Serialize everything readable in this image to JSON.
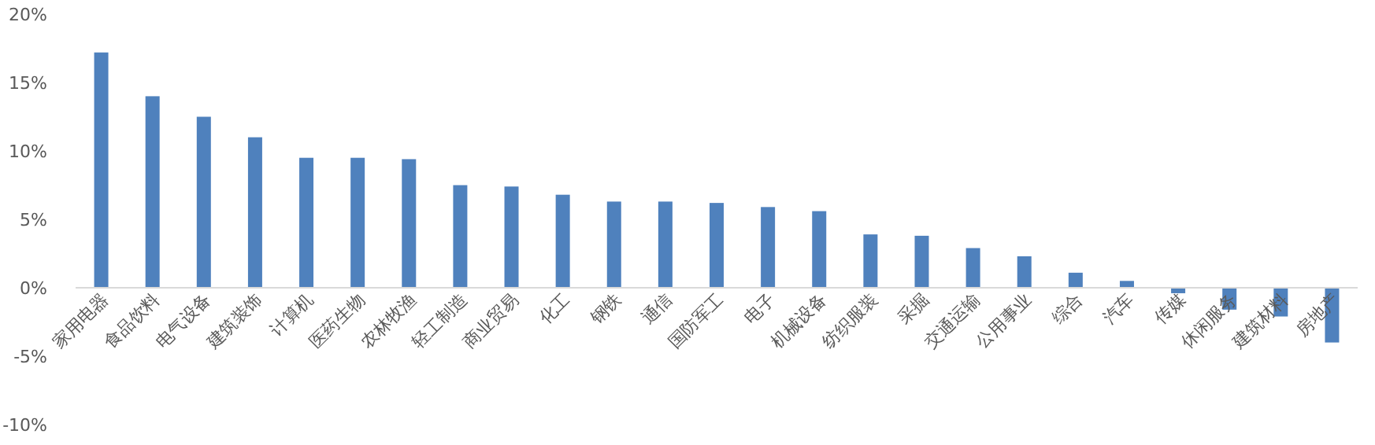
{
  "chart_data": {
    "type": "bar",
    "categories": [
      "家用电器",
      "食品饮料",
      "电气设备",
      "建筑装饰",
      "计算机",
      "医药生物",
      "农林牧渔",
      "轻工制造",
      "商业贸易",
      "化工",
      "钢铁",
      "通信",
      "国防军工",
      "电子",
      "机械设备",
      "纺织服装",
      "采掘",
      "交通运输",
      "公用事业",
      "综合",
      "汽车",
      "传媒",
      "休闲服务",
      "建筑材料",
      "房地产"
    ],
    "values": [
      17.2,
      14.0,
      12.5,
      11.0,
      9.5,
      9.5,
      9.4,
      7.5,
      7.4,
      6.8,
      6.3,
      6.3,
      6.2,
      5.9,
      5.6,
      3.9,
      3.8,
      2.9,
      2.3,
      1.1,
      0.5,
      -0.4,
      -1.6,
      -2.1,
      -4.0
    ],
    "color": "#4f81bd",
    "ylim": [
      -10,
      20
    ],
    "yticks": [
      {
        "value": -10,
        "label": "-10%"
      },
      {
        "value": -5,
        "label": "-5%"
      },
      {
        "value": 0,
        "label": "0%"
      },
      {
        "value": 5,
        "label": "5%"
      },
      {
        "value": 10,
        "label": "10%"
      },
      {
        "value": 15,
        "label": "15%"
      },
      {
        "value": 20,
        "label": "20%"
      }
    ]
  }
}
